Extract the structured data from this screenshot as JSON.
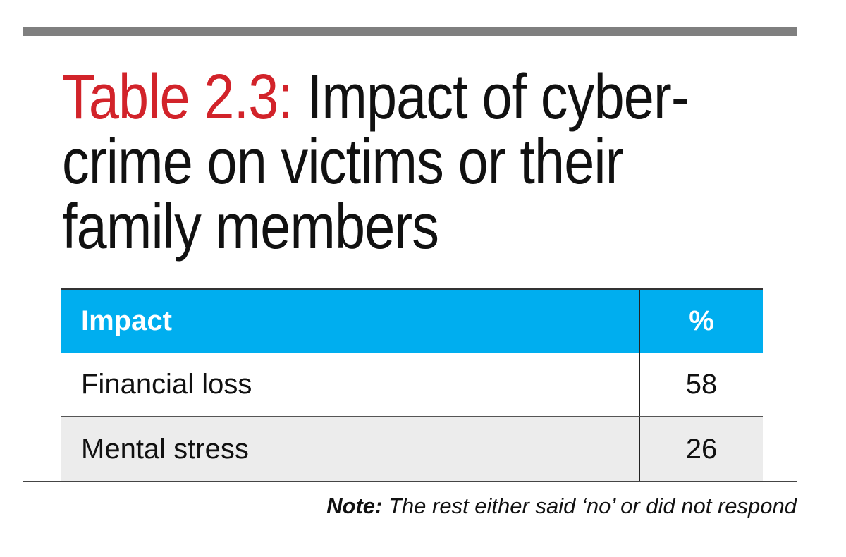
{
  "title": {
    "label": "Table 2.3:",
    "line1": "Impact of cyber-",
    "line2": "crime on victims or their",
    "line3": "family members"
  },
  "table": {
    "headers": [
      "Impact",
      "%"
    ],
    "rows": [
      {
        "impact": "Financial loss",
        "percent": "58"
      },
      {
        "impact": "Mental stress",
        "percent": "26"
      }
    ]
  },
  "note": {
    "label": "Note:",
    "text": "The rest either said ‘no’ or did not respond"
  },
  "colors": {
    "accent_red": "#d2232a",
    "header_blue": "#00aeef",
    "stripe_gray": "#ececec"
  }
}
